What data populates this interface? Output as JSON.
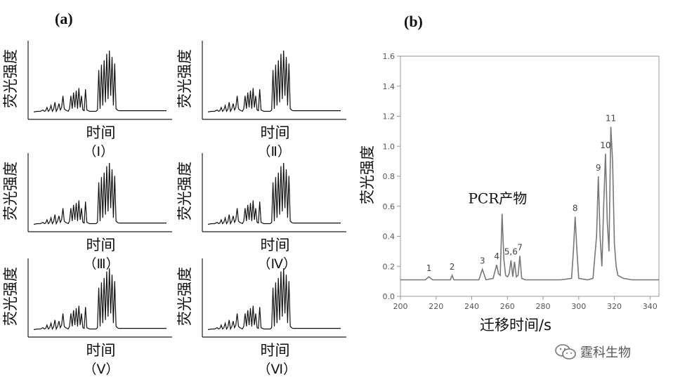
{
  "panel_a_label": "(a)",
  "panel_b_label": "(b)",
  "watermark": "霆科生物",
  "chart_data": [
    {
      "type": "line",
      "panel": "(a) (Ⅰ)",
      "ylabel": "荧光强度",
      "xlabel": "时间",
      "caption": "（Ⅰ）",
      "x": [
        0,
        3,
        5,
        6,
        7,
        8,
        9,
        10,
        11,
        12,
        13,
        14,
        15,
        16,
        17,
        18,
        19,
        20,
        21,
        22,
        23,
        24,
        25,
        26,
        27,
        28,
        29,
        30,
        31,
        32,
        33,
        34,
        35,
        36,
        37,
        38,
        39,
        40,
        41,
        42,
        43,
        44,
        45,
        46,
        47,
        48,
        49,
        50,
        51,
        52,
        53,
        54,
        55,
        56,
        57,
        58,
        59,
        60,
        61,
        62,
        63,
        64,
        65,
        66,
        67,
        68,
        69,
        70,
        71,
        72,
        73,
        74,
        75,
        76,
        77,
        78,
        79,
        80,
        81,
        82,
        83,
        84,
        85,
        86,
        87,
        88,
        89,
        90,
        91,
        92,
        93,
        94,
        95,
        96,
        97,
        98,
        99,
        100
      ],
      "y": [
        0.05,
        0.06,
        0.06,
        0.07,
        0.08,
        0.06,
        0.07,
        0.12,
        0.06,
        0.08,
        0.15,
        0.06,
        0.09,
        0.2,
        0.06,
        0.1,
        0.18,
        0.08,
        0.12,
        0.3,
        0.1,
        0.08,
        0.07,
        0.06,
        0.1,
        0.3,
        0.1,
        0.35,
        0.12,
        0.38,
        0.1,
        0.42,
        0.12,
        0.3,
        0.08,
        0.07,
        0.4,
        0.08,
        0.07,
        0.06,
        0.06,
        0.06,
        0.06,
        0.06,
        0.06,
        0.08,
        0.7,
        0.1,
        0.78,
        0.15,
        0.85,
        0.2,
        0.95,
        0.25,
        1.0,
        0.3,
        0.9,
        0.15,
        0.8,
        0.1,
        0.08,
        0.07,
        0.07,
        0.07,
        0.07,
        0.07,
        0.07,
        0.07,
        0.07,
        0.07,
        0.07,
        0.07,
        0.07,
        0.07,
        0.07,
        0.07,
        0.07,
        0.07,
        0.07,
        0.07,
        0.07,
        0.07,
        0.07,
        0.07,
        0.07,
        0.07,
        0.07,
        0.07,
        0.07,
        0.07,
        0.07,
        0.07,
        0.07,
        0.07,
        0.07,
        0.07,
        0.07,
        0.07
      ]
    },
    {
      "type": "line",
      "panel": "(a) (Ⅱ)",
      "ylabel": "荧光强度",
      "xlabel": "时间",
      "caption": "（Ⅱ）",
      "x": [
        0,
        3,
        5,
        6,
        7,
        8,
        9,
        10,
        11,
        12,
        13,
        14,
        15,
        16,
        17,
        18,
        19,
        20,
        21,
        22,
        23,
        24,
        25,
        26,
        27,
        28,
        29,
        30,
        31,
        32,
        33,
        34,
        35,
        36,
        37,
        38,
        39,
        40,
        41,
        42,
        43,
        44,
        45,
        46,
        47,
        48,
        49,
        50,
        51,
        52,
        53,
        54,
        55,
        56,
        57,
        58,
        59,
        60,
        61,
        62,
        63,
        64,
        65,
        66,
        67,
        68,
        69,
        70,
        71,
        72,
        73,
        74,
        75,
        76,
        77,
        78,
        79,
        80,
        81,
        82,
        83,
        84,
        85,
        86,
        87,
        88,
        89,
        90,
        91,
        92,
        93,
        94,
        95,
        96,
        97,
        98,
        99,
        100
      ],
      "y": [
        0.05,
        0.06,
        0.06,
        0.07,
        0.08,
        0.06,
        0.07,
        0.12,
        0.06,
        0.08,
        0.15,
        0.06,
        0.09,
        0.2,
        0.06,
        0.1,
        0.18,
        0.08,
        0.12,
        0.3,
        0.1,
        0.08,
        0.07,
        0.06,
        0.1,
        0.3,
        0.1,
        0.35,
        0.12,
        0.38,
        0.1,
        0.42,
        0.12,
        0.3,
        0.08,
        0.07,
        0.4,
        0.08,
        0.07,
        0.06,
        0.06,
        0.06,
        0.06,
        0.06,
        0.06,
        0.08,
        0.7,
        0.1,
        0.78,
        0.15,
        0.85,
        0.2,
        0.95,
        0.25,
        1.0,
        0.3,
        0.9,
        0.15,
        0.8,
        0.1,
        0.08,
        0.07,
        0.07,
        0.07,
        0.07,
        0.07,
        0.07,
        0.07,
        0.07,
        0.07,
        0.07,
        0.07,
        0.07,
        0.07,
        0.07,
        0.07,
        0.07,
        0.07,
        0.07,
        0.07,
        0.07,
        0.07,
        0.07,
        0.07,
        0.07,
        0.07,
        0.07,
        0.07,
        0.07,
        0.07,
        0.07,
        0.07,
        0.07,
        0.07,
        0.07,
        0.07,
        0.07,
        0.07
      ]
    },
    {
      "type": "line",
      "panel": "(a) (Ⅲ)",
      "ylabel": "荧光强度",
      "xlabel": "时间",
      "caption": "（Ⅲ）",
      "x": [
        0,
        3,
        5,
        6,
        7,
        8,
        9,
        10,
        11,
        12,
        13,
        14,
        15,
        16,
        17,
        18,
        19,
        20,
        21,
        22,
        23,
        24,
        25,
        26,
        27,
        28,
        29,
        30,
        31,
        32,
        33,
        34,
        35,
        36,
        37,
        38,
        39,
        40,
        41,
        42,
        43,
        44,
        45,
        46,
        47,
        48,
        49,
        50,
        51,
        52,
        53,
        54,
        55,
        56,
        57,
        58,
        59,
        60,
        61,
        62,
        63,
        64,
        65,
        66,
        67,
        68,
        69,
        70,
        71,
        72,
        73,
        74,
        75,
        76,
        77,
        78,
        79,
        80,
        81,
        82,
        83,
        84,
        85,
        86,
        87,
        88,
        89,
        90,
        91,
        92,
        93,
        94,
        95,
        96,
        97,
        98,
        99,
        100
      ],
      "y": [
        0.05,
        0.06,
        0.06,
        0.07,
        0.08,
        0.06,
        0.07,
        0.12,
        0.06,
        0.08,
        0.15,
        0.06,
        0.09,
        0.2,
        0.06,
        0.1,
        0.18,
        0.08,
        0.12,
        0.3,
        0.1,
        0.08,
        0.07,
        0.06,
        0.1,
        0.3,
        0.1,
        0.35,
        0.12,
        0.38,
        0.1,
        0.42,
        0.12,
        0.3,
        0.08,
        0.07,
        0.4,
        0.08,
        0.07,
        0.06,
        0.06,
        0.06,
        0.06,
        0.06,
        0.06,
        0.08,
        0.7,
        0.1,
        0.78,
        0.15,
        0.85,
        0.2,
        0.95,
        0.25,
        1.0,
        0.3,
        0.9,
        0.15,
        0.8,
        0.1,
        0.08,
        0.07,
        0.07,
        0.07,
        0.07,
        0.07,
        0.07,
        0.07,
        0.07,
        0.07,
        0.07,
        0.07,
        0.07,
        0.07,
        0.07,
        0.07,
        0.07,
        0.07,
        0.07,
        0.07,
        0.07,
        0.07,
        0.07,
        0.07,
        0.07,
        0.07,
        0.07,
        0.07,
        0.07,
        0.07,
        0.07,
        0.07,
        0.07,
        0.07,
        0.07,
        0.07,
        0.07,
        0.07
      ]
    },
    {
      "type": "line",
      "panel": "(a) (Ⅳ)",
      "ylabel": "荧光强度",
      "xlabel": "时间",
      "caption": "（Ⅳ）",
      "x": [
        0,
        3,
        5,
        6,
        7,
        8,
        9,
        10,
        11,
        12,
        13,
        14,
        15,
        16,
        17,
        18,
        19,
        20,
        21,
        22,
        23,
        24,
        25,
        26,
        27,
        28,
        29,
        30,
        31,
        32,
        33,
        34,
        35,
        36,
        37,
        38,
        39,
        40,
        41,
        42,
        43,
        44,
        45,
        46,
        47,
        48,
        49,
        50,
        51,
        52,
        53,
        54,
        55,
        56,
        57,
        58,
        59,
        60,
        61,
        62,
        63,
        64,
        65,
        66,
        67,
        68,
        69,
        70,
        71,
        72,
        73,
        74,
        75,
        76,
        77,
        78,
        79,
        80,
        81,
        82,
        83,
        84,
        85,
        86,
        87,
        88,
        89,
        90,
        91,
        92,
        93,
        94,
        95,
        96,
        97,
        98,
        99,
        100
      ],
      "y": [
        0.05,
        0.06,
        0.06,
        0.07,
        0.08,
        0.06,
        0.07,
        0.12,
        0.06,
        0.08,
        0.15,
        0.06,
        0.09,
        0.2,
        0.06,
        0.1,
        0.18,
        0.08,
        0.12,
        0.3,
        0.1,
        0.08,
        0.07,
        0.06,
        0.1,
        0.3,
        0.1,
        0.35,
        0.12,
        0.38,
        0.1,
        0.42,
        0.12,
        0.3,
        0.08,
        0.07,
        0.4,
        0.08,
        0.07,
        0.06,
        0.06,
        0.06,
        0.06,
        0.06,
        0.06,
        0.08,
        0.7,
        0.1,
        0.78,
        0.15,
        0.85,
        0.2,
        0.95,
        0.25,
        1.0,
        0.3,
        0.9,
        0.15,
        0.8,
        0.1,
        0.08,
        0.07,
        0.07,
        0.07,
        0.07,
        0.07,
        0.07,
        0.07,
        0.07,
        0.07,
        0.07,
        0.07,
        0.07,
        0.07,
        0.07,
        0.07,
        0.07,
        0.07,
        0.07,
        0.07,
        0.07,
        0.07,
        0.07,
        0.07,
        0.07,
        0.07,
        0.07,
        0.07,
        0.07,
        0.07,
        0.07,
        0.07,
        0.07,
        0.07,
        0.07,
        0.07,
        0.07,
        0.07
      ]
    },
    {
      "type": "line",
      "panel": "(a) (Ⅴ)",
      "ylabel": "荧光强度",
      "xlabel": "时间",
      "caption": "（Ⅴ）",
      "x": [
        0,
        3,
        5,
        6,
        7,
        8,
        9,
        10,
        11,
        12,
        13,
        14,
        15,
        16,
        17,
        18,
        19,
        20,
        21,
        22,
        23,
        24,
        25,
        26,
        27,
        28,
        29,
        30,
        31,
        32,
        33,
        34,
        35,
        36,
        37,
        38,
        39,
        40,
        41,
        42,
        43,
        44,
        45,
        46,
        47,
        48,
        49,
        50,
        51,
        52,
        53,
        54,
        55,
        56,
        57,
        58,
        59,
        60,
        61,
        62,
        63,
        64,
        65,
        66,
        67,
        68,
        69,
        70,
        71,
        72,
        73,
        74,
        75,
        76,
        77,
        78,
        79,
        80,
        81,
        82,
        83,
        84,
        85,
        86,
        87,
        88,
        89,
        90,
        91,
        92,
        93,
        94,
        95,
        96,
        97,
        98,
        99,
        100
      ],
      "y": [
        0.05,
        0.06,
        0.06,
        0.07,
        0.08,
        0.06,
        0.07,
        0.12,
        0.06,
        0.08,
        0.15,
        0.06,
        0.09,
        0.2,
        0.06,
        0.1,
        0.18,
        0.08,
        0.12,
        0.3,
        0.1,
        0.08,
        0.07,
        0.06,
        0.1,
        0.3,
        0.1,
        0.35,
        0.12,
        0.38,
        0.1,
        0.42,
        0.12,
        0.3,
        0.08,
        0.07,
        0.4,
        0.08,
        0.07,
        0.06,
        0.06,
        0.06,
        0.06,
        0.06,
        0.06,
        0.08,
        0.7,
        0.1,
        0.78,
        0.15,
        0.85,
        0.2,
        0.95,
        0.25,
        1.0,
        0.3,
        0.9,
        0.15,
        0.8,
        0.1,
        0.08,
        0.07,
        0.07,
        0.07,
        0.07,
        0.07,
        0.07,
        0.07,
        0.07,
        0.07,
        0.07,
        0.07,
        0.07,
        0.07,
        0.07,
        0.07,
        0.07,
        0.07,
        0.07,
        0.07,
        0.07,
        0.07,
        0.07,
        0.07,
        0.07,
        0.07,
        0.07,
        0.07,
        0.07,
        0.07,
        0.07,
        0.07,
        0.07,
        0.07,
        0.07,
        0.07,
        0.07,
        0.07
      ]
    },
    {
      "type": "line",
      "panel": "(a) (Ⅵ)",
      "ylabel": "荧光强度",
      "xlabel": "时间",
      "caption": "（Ⅵ）",
      "x": [
        0,
        3,
        5,
        6,
        7,
        8,
        9,
        10,
        11,
        12,
        13,
        14,
        15,
        16,
        17,
        18,
        19,
        20,
        21,
        22,
        23,
        24,
        25,
        26,
        27,
        28,
        29,
        30,
        31,
        32,
        33,
        34,
        35,
        36,
        37,
        38,
        39,
        40,
        41,
        42,
        43,
        44,
        45,
        46,
        47,
        48,
        49,
        50,
        51,
        52,
        53,
        54,
        55,
        56,
        57,
        58,
        59,
        60,
        61,
        62,
        63,
        64,
        65,
        66,
        67,
        68,
        69,
        70,
        71,
        72,
        73,
        74,
        75,
        76,
        77,
        78,
        79,
        80,
        81,
        82,
        83,
        84,
        85,
        86,
        87,
        88,
        89,
        90,
        91,
        92,
        93,
        94,
        95,
        96,
        97,
        98,
        99,
        100
      ],
      "y": [
        0.05,
        0.06,
        0.06,
        0.07,
        0.08,
        0.06,
        0.07,
        0.12,
        0.06,
        0.08,
        0.15,
        0.06,
        0.09,
        0.2,
        0.06,
        0.1,
        0.18,
        0.08,
        0.12,
        0.3,
        0.1,
        0.08,
        0.07,
        0.06,
        0.1,
        0.3,
        0.1,
        0.35,
        0.12,
        0.38,
        0.1,
        0.42,
        0.12,
        0.3,
        0.08,
        0.07,
        0.4,
        0.08,
        0.07,
        0.06,
        0.06,
        0.06,
        0.06,
        0.06,
        0.06,
        0.08,
        0.7,
        0.1,
        0.78,
        0.15,
        0.85,
        0.2,
        0.95,
        0.25,
        1.0,
        0.3,
        0.9,
        0.15,
        0.8,
        0.1,
        0.08,
        0.07,
        0.07,
        0.07,
        0.07,
        0.07,
        0.07,
        0.07,
        0.07,
        0.07,
        0.07,
        0.07,
        0.07,
        0.07,
        0.07,
        0.07,
        0.07,
        0.07,
        0.07,
        0.07,
        0.07,
        0.07,
        0.07,
        0.07,
        0.07,
        0.07,
        0.07,
        0.07,
        0.07,
        0.07,
        0.07,
        0.07,
        0.07,
        0.07,
        0.07,
        0.07,
        0.07,
        0.07
      ]
    },
    {
      "type": "line",
      "panel": "(b)",
      "xlabel": "迁移时间/s",
      "ylabel": "荧光强度",
      "xlim": [
        200,
        345
      ],
      "ylim": [
        0.0,
        1.6
      ],
      "xticks": [
        "200",
        "220",
        "240",
        "260",
        "280",
        "300",
        "320",
        "340"
      ],
      "yticks": [
        "0.0",
        "0.2",
        "0.4",
        "0.6",
        "0.8",
        "1.0",
        "1.2",
        "1.4",
        "1.6"
      ],
      "annotation": "PCR产物",
      "peaks": [
        {
          "label": "1",
          "x": 216,
          "y": 0.13
        },
        {
          "label": "2",
          "x": 229,
          "y": 0.14
        },
        {
          "label": "3",
          "x": 246,
          "y": 0.18
        },
        {
          "label": "4",
          "x": 254,
          "y": 0.21
        },
        {
          "label": "5,6",
          "x": 262,
          "y": 0.24
        },
        {
          "label": "7",
          "x": 267,
          "y": 0.27
        },
        {
          "label": "8",
          "x": 298,
          "y": 0.53
        },
        {
          "label": "9",
          "x": 311,
          "y": 0.8
        },
        {
          "label": "10",
          "x": 315,
          "y": 0.95
        },
        {
          "label": "11",
          "x": 318,
          "y": 1.13
        }
      ],
      "pcr_product_peak": {
        "x": 257,
        "y": 0.55
      },
      "x": [
        200,
        210,
        214,
        216,
        218,
        225,
        228,
        229,
        230,
        240,
        244,
        246,
        248,
        252,
        254,
        255,
        256,
        257,
        258,
        259,
        260,
        261,
        262,
        263,
        264,
        265,
        266,
        267,
        268,
        270,
        280,
        290,
        296,
        297,
        298,
        299,
        300,
        305,
        308,
        310,
        311,
        312,
        313,
        314,
        315,
        316,
        317,
        318,
        319,
        320,
        321,
        322,
        325,
        330,
        335,
        340,
        345
      ],
      "y": [
        0.11,
        0.11,
        0.11,
        0.13,
        0.11,
        0.11,
        0.11,
        0.14,
        0.11,
        0.11,
        0.11,
        0.18,
        0.11,
        0.12,
        0.21,
        0.15,
        0.14,
        0.55,
        0.25,
        0.14,
        0.13,
        0.15,
        0.24,
        0.13,
        0.23,
        0.13,
        0.14,
        0.27,
        0.12,
        0.11,
        0.11,
        0.11,
        0.12,
        0.3,
        0.53,
        0.3,
        0.12,
        0.11,
        0.12,
        0.4,
        0.8,
        0.4,
        0.2,
        0.6,
        0.95,
        0.5,
        0.3,
        1.13,
        0.9,
        0.35,
        0.2,
        0.14,
        0.12,
        0.11,
        0.11,
        0.11,
        0.11
      ]
    }
  ]
}
